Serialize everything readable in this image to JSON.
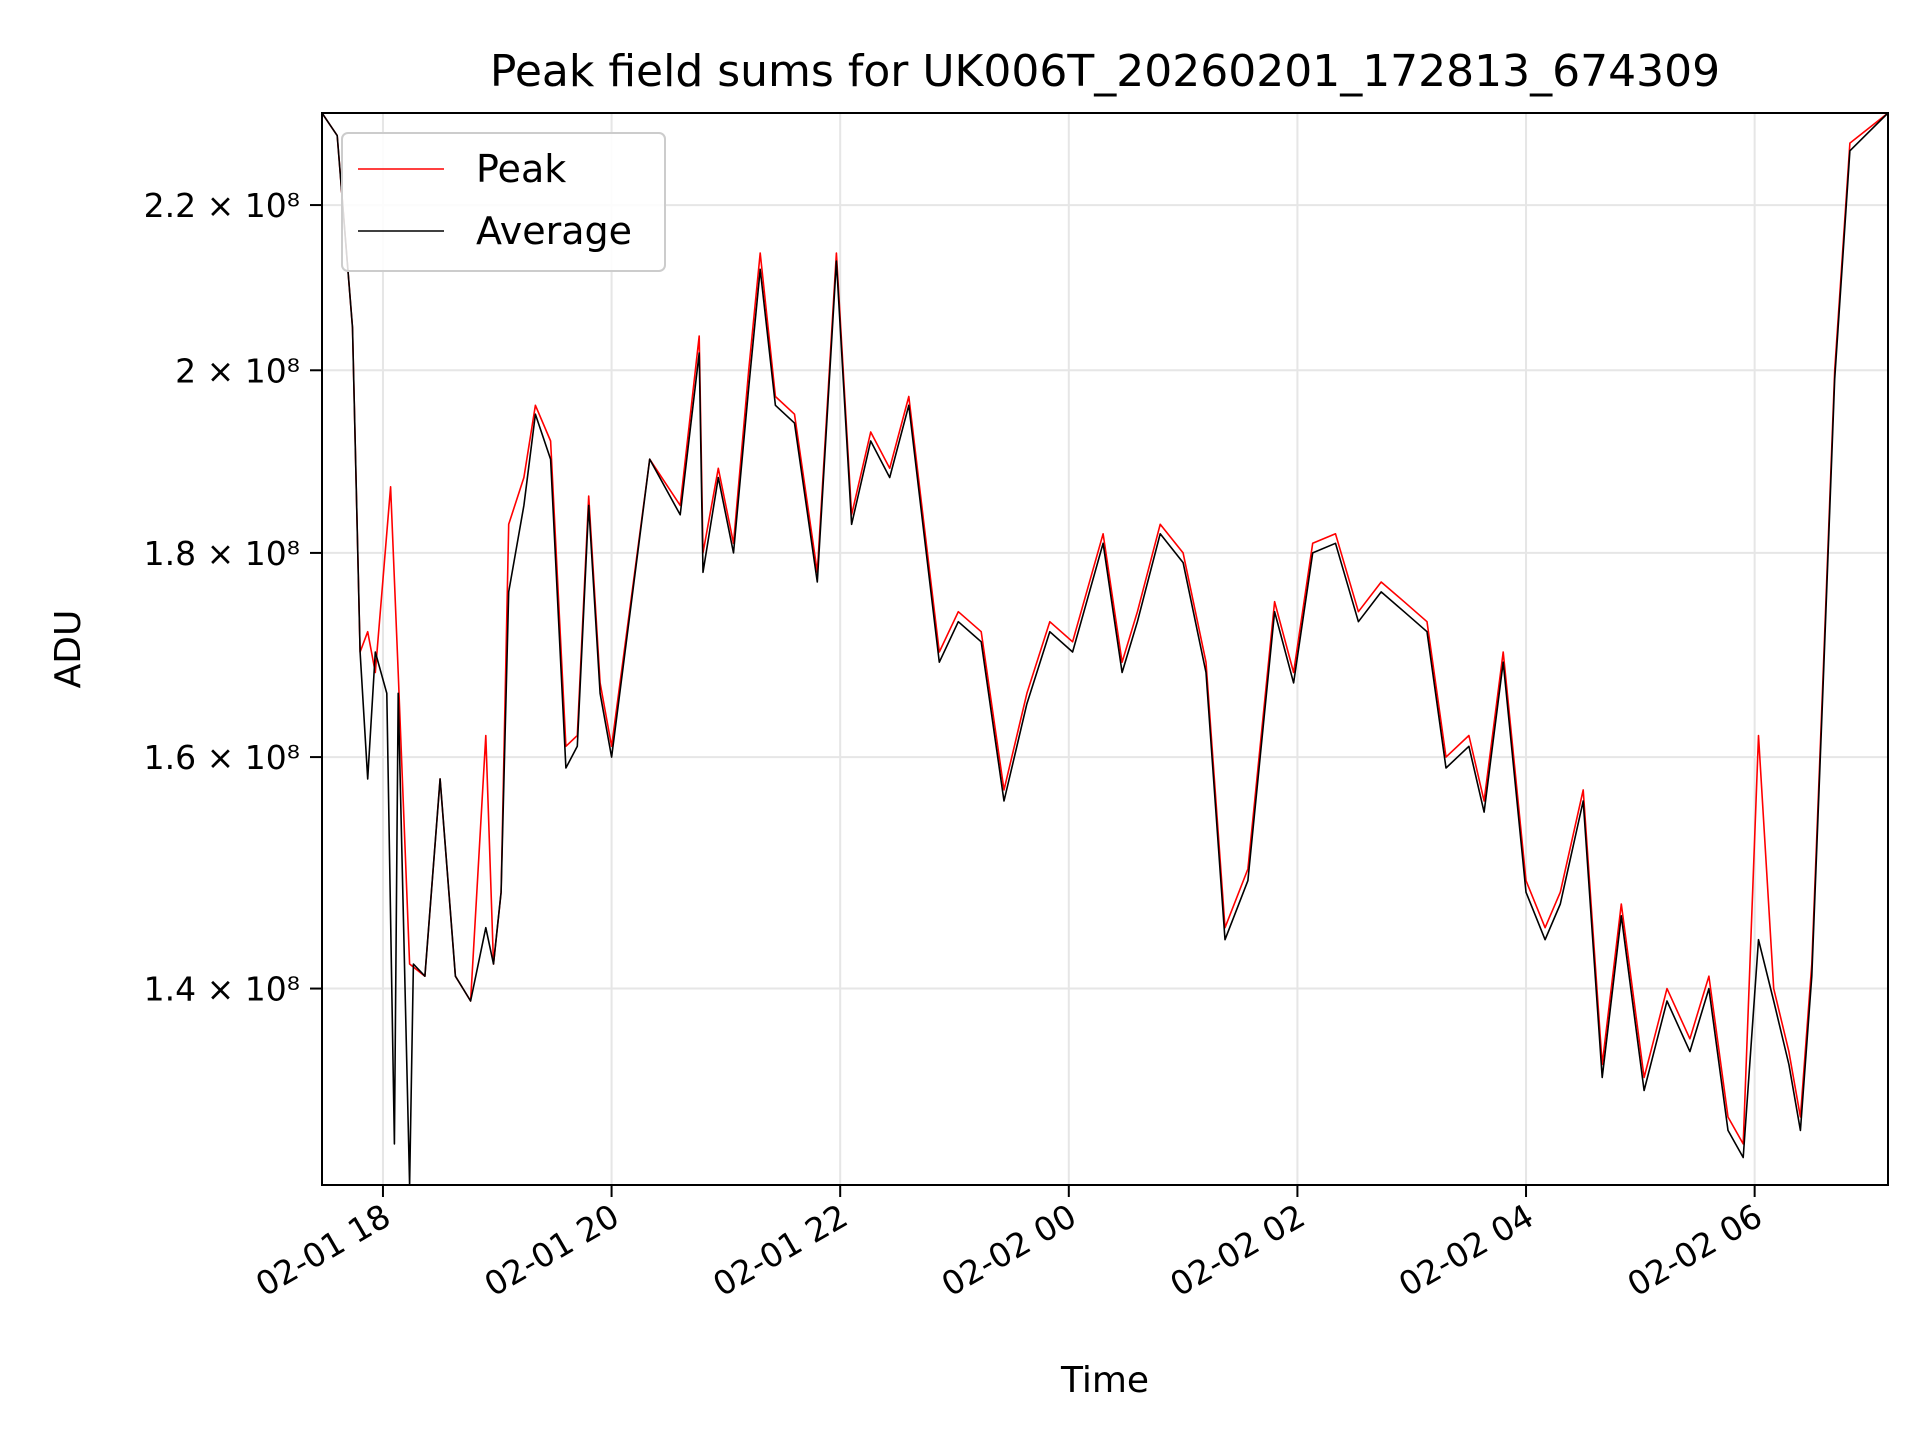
{
  "chart_data": {
    "type": "line",
    "title": "Peak field sums for UK006T_20260201_172813_674309",
    "xlabel": "Time",
    "ylabel": "ADU",
    "y_scale": "log",
    "grid": true,
    "legend_position": "top-left",
    "xlim": [
      "2026-02-01 17:28",
      "2026-02-02 07:10"
    ],
    "ylim": [
      125000000,
      232000000
    ],
    "x_ticks": [
      {
        "t": "2026-02-01 18:00",
        "label": "02-01 18"
      },
      {
        "t": "2026-02-01 20:00",
        "label": "02-01 20"
      },
      {
        "t": "2026-02-01 22:00",
        "label": "02-01 22"
      },
      {
        "t": "2026-02-02 00:00",
        "label": "02-02 00"
      },
      {
        "t": "2026-02-02 02:00",
        "label": "02-02 02"
      },
      {
        "t": "2026-02-02 04:00",
        "label": "02-02 04"
      },
      {
        "t": "2026-02-02 06:00",
        "label": "02-02 06"
      }
    ],
    "y_ticks": [
      {
        "value": 140000000,
        "label": "1.4 × 10⁸"
      },
      {
        "value": 160000000,
        "label": "1.6 × 10⁸"
      },
      {
        "value": 180000000,
        "label": "1.8 × 10⁸"
      },
      {
        "value": 200000000,
        "label": "2 × 10⁸"
      },
      {
        "value": 220000000,
        "label": "2.2 × 10⁸"
      }
    ],
    "series": [
      {
        "name": "Peak",
        "color": "#ff0000",
        "x": [
          "2026-02-01 17:28",
          "2026-02-01 17:36",
          "2026-02-01 17:44",
          "2026-02-01 17:48",
          "2026-02-01 17:52",
          "2026-02-01 17:56",
          "2026-02-01 18:04",
          "2026-02-01 18:08",
          "2026-02-01 18:14",
          "2026-02-01 18:22",
          "2026-02-01 18:30",
          "2026-02-01 18:38",
          "2026-02-01 18:46",
          "2026-02-01 18:54",
          "2026-02-01 18:58",
          "2026-02-01 19:02",
          "2026-02-01 19:06",
          "2026-02-01 19:14",
          "2026-02-01 19:20",
          "2026-02-01 19:28",
          "2026-02-01 19:36",
          "2026-02-01 19:42",
          "2026-02-01 19:48",
          "2026-02-01 19:54",
          "2026-02-01 20:00",
          "2026-02-01 20:20",
          "2026-02-01 20:36",
          "2026-02-01 20:46",
          "2026-02-01 20:48",
          "2026-02-01 20:56",
          "2026-02-01 21:04",
          "2026-02-01 21:12",
          "2026-02-01 21:18",
          "2026-02-01 21:26",
          "2026-02-01 21:36",
          "2026-02-01 21:48",
          "2026-02-01 21:58",
          "2026-02-01 22:06",
          "2026-02-01 22:16",
          "2026-02-01 22:26",
          "2026-02-01 22:36",
          "2026-02-01 22:44",
          "2026-02-01 22:52",
          "2026-02-01 23:02",
          "2026-02-01 23:14",
          "2026-02-01 23:26",
          "2026-02-01 23:38",
          "2026-02-01 23:50",
          "2026-02-02 00:02",
          "2026-02-02 00:18",
          "2026-02-02 00:28",
          "2026-02-02 00:36",
          "2026-02-02 00:48",
          "2026-02-02 01:00",
          "2026-02-02 01:12",
          "2026-02-02 01:22",
          "2026-02-02 01:34",
          "2026-02-02 01:48",
          "2026-02-02 01:58",
          "2026-02-02 02:08",
          "2026-02-02 02:20",
          "2026-02-02 02:32",
          "2026-02-02 02:44",
          "2026-02-02 02:56",
          "2026-02-02 03:08",
          "2026-02-02 03:18",
          "2026-02-02 03:30",
          "2026-02-02 03:38",
          "2026-02-02 03:48",
          "2026-02-02 04:00",
          "2026-02-02 04:10",
          "2026-02-02 04:18",
          "2026-02-02 04:30",
          "2026-02-02 04:40",
          "2026-02-02 04:50",
          "2026-02-02 05:02",
          "2026-02-02 05:14",
          "2026-02-02 05:26",
          "2026-02-02 05:36",
          "2026-02-02 05:46",
          "2026-02-02 05:54",
          "2026-02-02 06:02",
          "2026-02-02 06:10",
          "2026-02-02 06:18",
          "2026-02-02 06:24",
          "2026-02-02 06:30",
          "2026-02-02 06:36",
          "2026-02-02 06:42",
          "2026-02-02 06:50",
          "2026-02-02 07:10"
        ],
        "values": [
          232000000,
          229000000,
          205000000,
          170000000,
          172000000,
          168000000,
          187000000,
          168000000,
          142000000,
          141000000,
          158000000,
          141000000,
          139000000,
          162000000,
          142000000,
          148000000,
          183000000,
          188000000,
          196000000,
          192000000,
          161000000,
          162000000,
          186000000,
          167000000,
          161000000,
          190000000,
          185000000,
          204000000,
          180000000,
          189000000,
          181000000,
          200000000,
          214000000,
          197000000,
          195000000,
          178000000,
          214000000,
          184000000,
          193000000,
          189000000,
          197000000,
          183000000,
          170000000,
          174000000,
          172000000,
          157000000,
          166000000,
          173000000,
          171000000,
          182000000,
          169000000,
          174000000,
          183000000,
          180000000,
          169000000,
          145000000,
          150000000,
          175000000,
          168000000,
          181000000,
          182000000,
          174000000,
          177000000,
          175000000,
          173000000,
          160000000,
          162000000,
          156000000,
          170000000,
          149000000,
          145000000,
          148000000,
          157000000,
          134000000,
          147000000,
          133000000,
          140000000,
          136000000,
          141000000,
          130000000,
          128000000,
          162000000,
          140000000,
          135000000,
          130000000,
          142000000,
          168000000,
          200000000,
          228000000,
          232000000
        ]
      },
      {
        "name": "Average",
        "color": "#000000",
        "x": [
          "2026-02-01 17:28",
          "2026-02-01 17:36",
          "2026-02-01 17:44",
          "2026-02-01 17:48",
          "2026-02-01 17:52",
          "2026-02-01 17:56",
          "2026-02-01 18:02",
          "2026-02-01 18:06",
          "2026-02-01 18:08",
          "2026-02-01 18:14",
          "2026-02-01 18:16",
          "2026-02-01 18:22",
          "2026-02-01 18:30",
          "2026-02-01 18:38",
          "2026-02-01 18:46",
          "2026-02-01 18:54",
          "2026-02-01 18:58",
          "2026-02-01 19:02",
          "2026-02-01 19:06",
          "2026-02-01 19:14",
          "2026-02-01 19:20",
          "2026-02-01 19:28",
          "2026-02-01 19:36",
          "2026-02-01 19:42",
          "2026-02-01 19:48",
          "2026-02-01 19:54",
          "2026-02-01 20:00",
          "2026-02-01 20:20",
          "2026-02-01 20:36",
          "2026-02-01 20:46",
          "2026-02-01 20:48",
          "2026-02-01 20:56",
          "2026-02-01 21:04",
          "2026-02-01 21:12",
          "2026-02-01 21:18",
          "2026-02-01 21:26",
          "2026-02-01 21:36",
          "2026-02-01 21:48",
          "2026-02-01 21:58",
          "2026-02-01 22:06",
          "2026-02-01 22:16",
          "2026-02-01 22:26",
          "2026-02-01 22:36",
          "2026-02-01 22:44",
          "2026-02-01 22:52",
          "2026-02-01 23:02",
          "2026-02-01 23:14",
          "2026-02-01 23:26",
          "2026-02-01 23:38",
          "2026-02-01 23:50",
          "2026-02-02 00:02",
          "2026-02-02 00:18",
          "2026-02-02 00:28",
          "2026-02-02 00:36",
          "2026-02-02 00:48",
          "2026-02-02 01:00",
          "2026-02-02 01:12",
          "2026-02-02 01:22",
          "2026-02-02 01:34",
          "2026-02-02 01:48",
          "2026-02-02 01:58",
          "2026-02-02 02:08",
          "2026-02-02 02:20",
          "2026-02-02 02:32",
          "2026-02-02 02:44",
          "2026-02-02 02:56",
          "2026-02-02 03:08",
          "2026-02-02 03:18",
          "2026-02-02 03:30",
          "2026-02-02 03:38",
          "2026-02-02 03:48",
          "2026-02-02 04:00",
          "2026-02-02 04:10",
          "2026-02-02 04:18",
          "2026-02-02 04:30",
          "2026-02-02 04:40",
          "2026-02-02 04:50",
          "2026-02-02 05:02",
          "2026-02-02 05:14",
          "2026-02-02 05:26",
          "2026-02-02 05:36",
          "2026-02-02 05:46",
          "2026-02-02 05:54",
          "2026-02-02 06:02",
          "2026-02-02 06:10",
          "2026-02-02 06:18",
          "2026-02-02 06:24",
          "2026-02-02 06:30",
          "2026-02-02 06:36",
          "2026-02-02 06:42",
          "2026-02-02 06:50",
          "2026-02-02 07:10"
        ],
        "values": [
          232000000,
          229000000,
          205000000,
          170000000,
          158000000,
          170000000,
          166000000,
          128000000,
          166000000,
          125000000,
          142000000,
          141000000,
          158000000,
          141000000,
          139000000,
          145000000,
          142000000,
          148000000,
          176000000,
          185000000,
          195000000,
          190000000,
          159000000,
          161000000,
          185000000,
          166000000,
          160000000,
          190000000,
          184000000,
          202000000,
          178000000,
          188000000,
          180000000,
          198000000,
          212000000,
          196000000,
          194000000,
          177000000,
          213000000,
          183000000,
          192000000,
          188000000,
          196000000,
          182000000,
          169000000,
          173000000,
          171000000,
          156000000,
          165000000,
          172000000,
          170000000,
          181000000,
          168000000,
          173000000,
          182000000,
          179000000,
          168000000,
          144000000,
          149000000,
          174000000,
          167000000,
          180000000,
          181000000,
          173000000,
          176000000,
          174000000,
          172000000,
          159000000,
          161000000,
          155000000,
          169000000,
          148000000,
          144000000,
          147000000,
          156000000,
          133000000,
          146000000,
          132000000,
          139000000,
          135000000,
          140000000,
          129000000,
          127000000,
          144000000,
          139000000,
          134000000,
          129000000,
          141000000,
          167000000,
          199000000,
          227000000,
          232000000
        ]
      }
    ]
  }
}
